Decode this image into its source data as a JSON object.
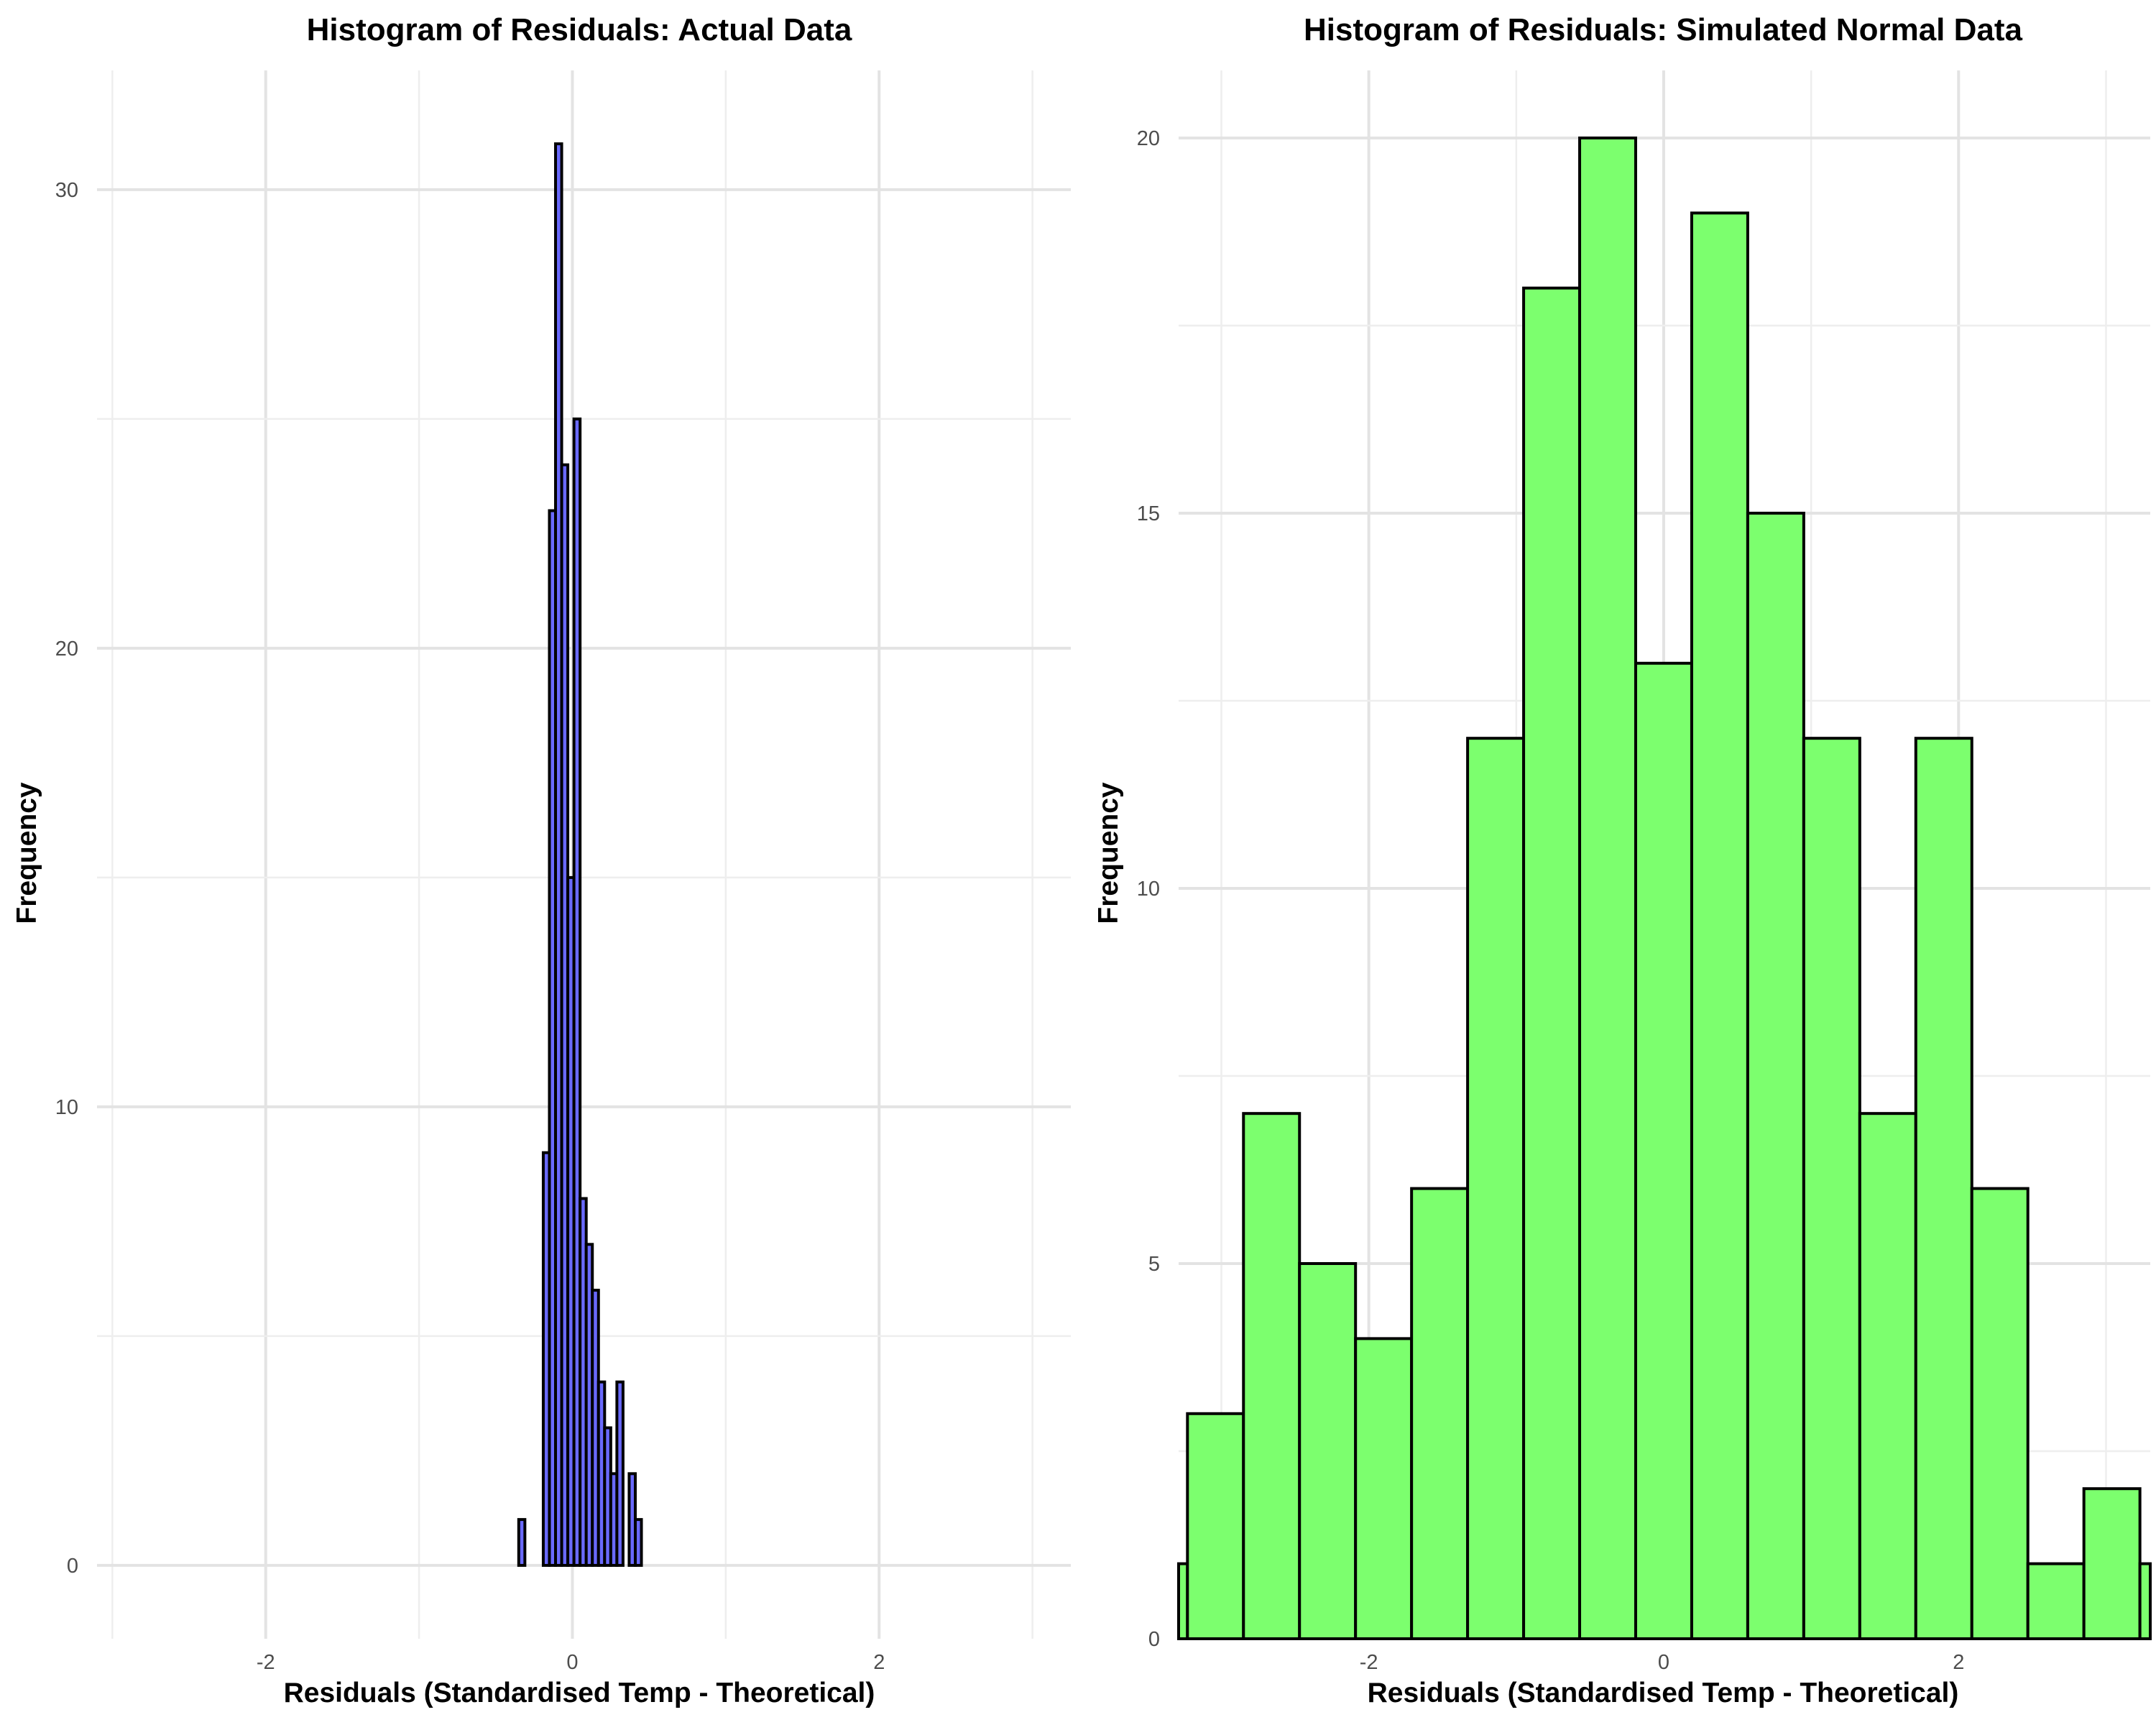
{
  "chart_data": [
    {
      "type": "bar",
      "title": "Histogram of Residuals: Actual Data",
      "xlabel": "Residuals (Standardised Temp - Theoretical)",
      "ylabel": "Frequency",
      "xlim": [
        -3.1,
        3.25
      ],
      "ylim": [
        -1.6,
        32.6
      ],
      "x_ticks": [
        -2,
        0,
        2
      ],
      "x_tick_labels": [
        "-2",
        "0",
        "2"
      ],
      "y_ticks": [
        0,
        10,
        20,
        30
      ],
      "y_tick_labels": [
        "0",
        "10",
        "20",
        "30"
      ],
      "grid": true,
      "fill_color": "#6a6aff",
      "edge_color": "#000000",
      "bin_width": 0.04,
      "bins": [
        {
          "x": -0.33,
          "count": 1
        },
        {
          "x": -0.29,
          "count": 0
        },
        {
          "x": -0.25,
          "count": 0
        },
        {
          "x": -0.21,
          "count": 0
        },
        {
          "x": -0.17,
          "count": 9
        },
        {
          "x": -0.13,
          "count": 23
        },
        {
          "x": -0.09,
          "count": 31
        },
        {
          "x": -0.05,
          "count": 24
        },
        {
          "x": -0.01,
          "count": 15
        },
        {
          "x": 0.03,
          "count": 25
        },
        {
          "x": 0.07,
          "count": 8
        },
        {
          "x": 0.11,
          "count": 7
        },
        {
          "x": 0.15,
          "count": 6
        },
        {
          "x": 0.19,
          "count": 4
        },
        {
          "x": 0.23,
          "count": 3
        },
        {
          "x": 0.27,
          "count": 2
        },
        {
          "x": 0.31,
          "count": 4
        },
        {
          "x": 0.35,
          "count": 0
        },
        {
          "x": 0.39,
          "count": 2
        },
        {
          "x": 0.43,
          "count": 1
        }
      ]
    },
    {
      "type": "bar",
      "title": "Histogram of Residuals: Simulated Normal Data",
      "xlabel": "Residuals (Standardised Temp - Theoretical)",
      "ylabel": "Frequency",
      "xlim": [
        -3.29,
        3.3
      ],
      "ylim": [
        0,
        20.9
      ],
      "x_ticks": [
        -2,
        0,
        2
      ],
      "x_tick_labels": [
        "-2",
        "0",
        "2"
      ],
      "y_ticks": [
        0,
        5,
        10,
        15,
        20
      ],
      "y_tick_labels": [
        "0",
        "5",
        "10",
        "15",
        "20"
      ],
      "grid": true,
      "fill_color": "#7cff6e",
      "edge_color": "#000000",
      "bin_width": 0.38,
      "bins": [
        {
          "x": -3.42,
          "count": 1
        },
        {
          "x": -3.04,
          "count": 3
        },
        {
          "x": -2.66,
          "count": 7
        },
        {
          "x": -2.28,
          "count": 5
        },
        {
          "x": -1.9,
          "count": 4
        },
        {
          "x": -1.52,
          "count": 6
        },
        {
          "x": -1.14,
          "count": 12
        },
        {
          "x": -0.76,
          "count": 18
        },
        {
          "x": -0.38,
          "count": 20
        },
        {
          "x": 0.0,
          "count": 13
        },
        {
          "x": 0.38,
          "count": 19
        },
        {
          "x": 0.76,
          "count": 15
        },
        {
          "x": 1.14,
          "count": 12
        },
        {
          "x": 1.52,
          "count": 7
        },
        {
          "x": 1.9,
          "count": 12
        },
        {
          "x": 2.28,
          "count": 6
        },
        {
          "x": 2.66,
          "count": 1
        },
        {
          "x": 3.04,
          "count": 2
        },
        {
          "x": 3.42,
          "count": 1
        }
      ]
    }
  ]
}
